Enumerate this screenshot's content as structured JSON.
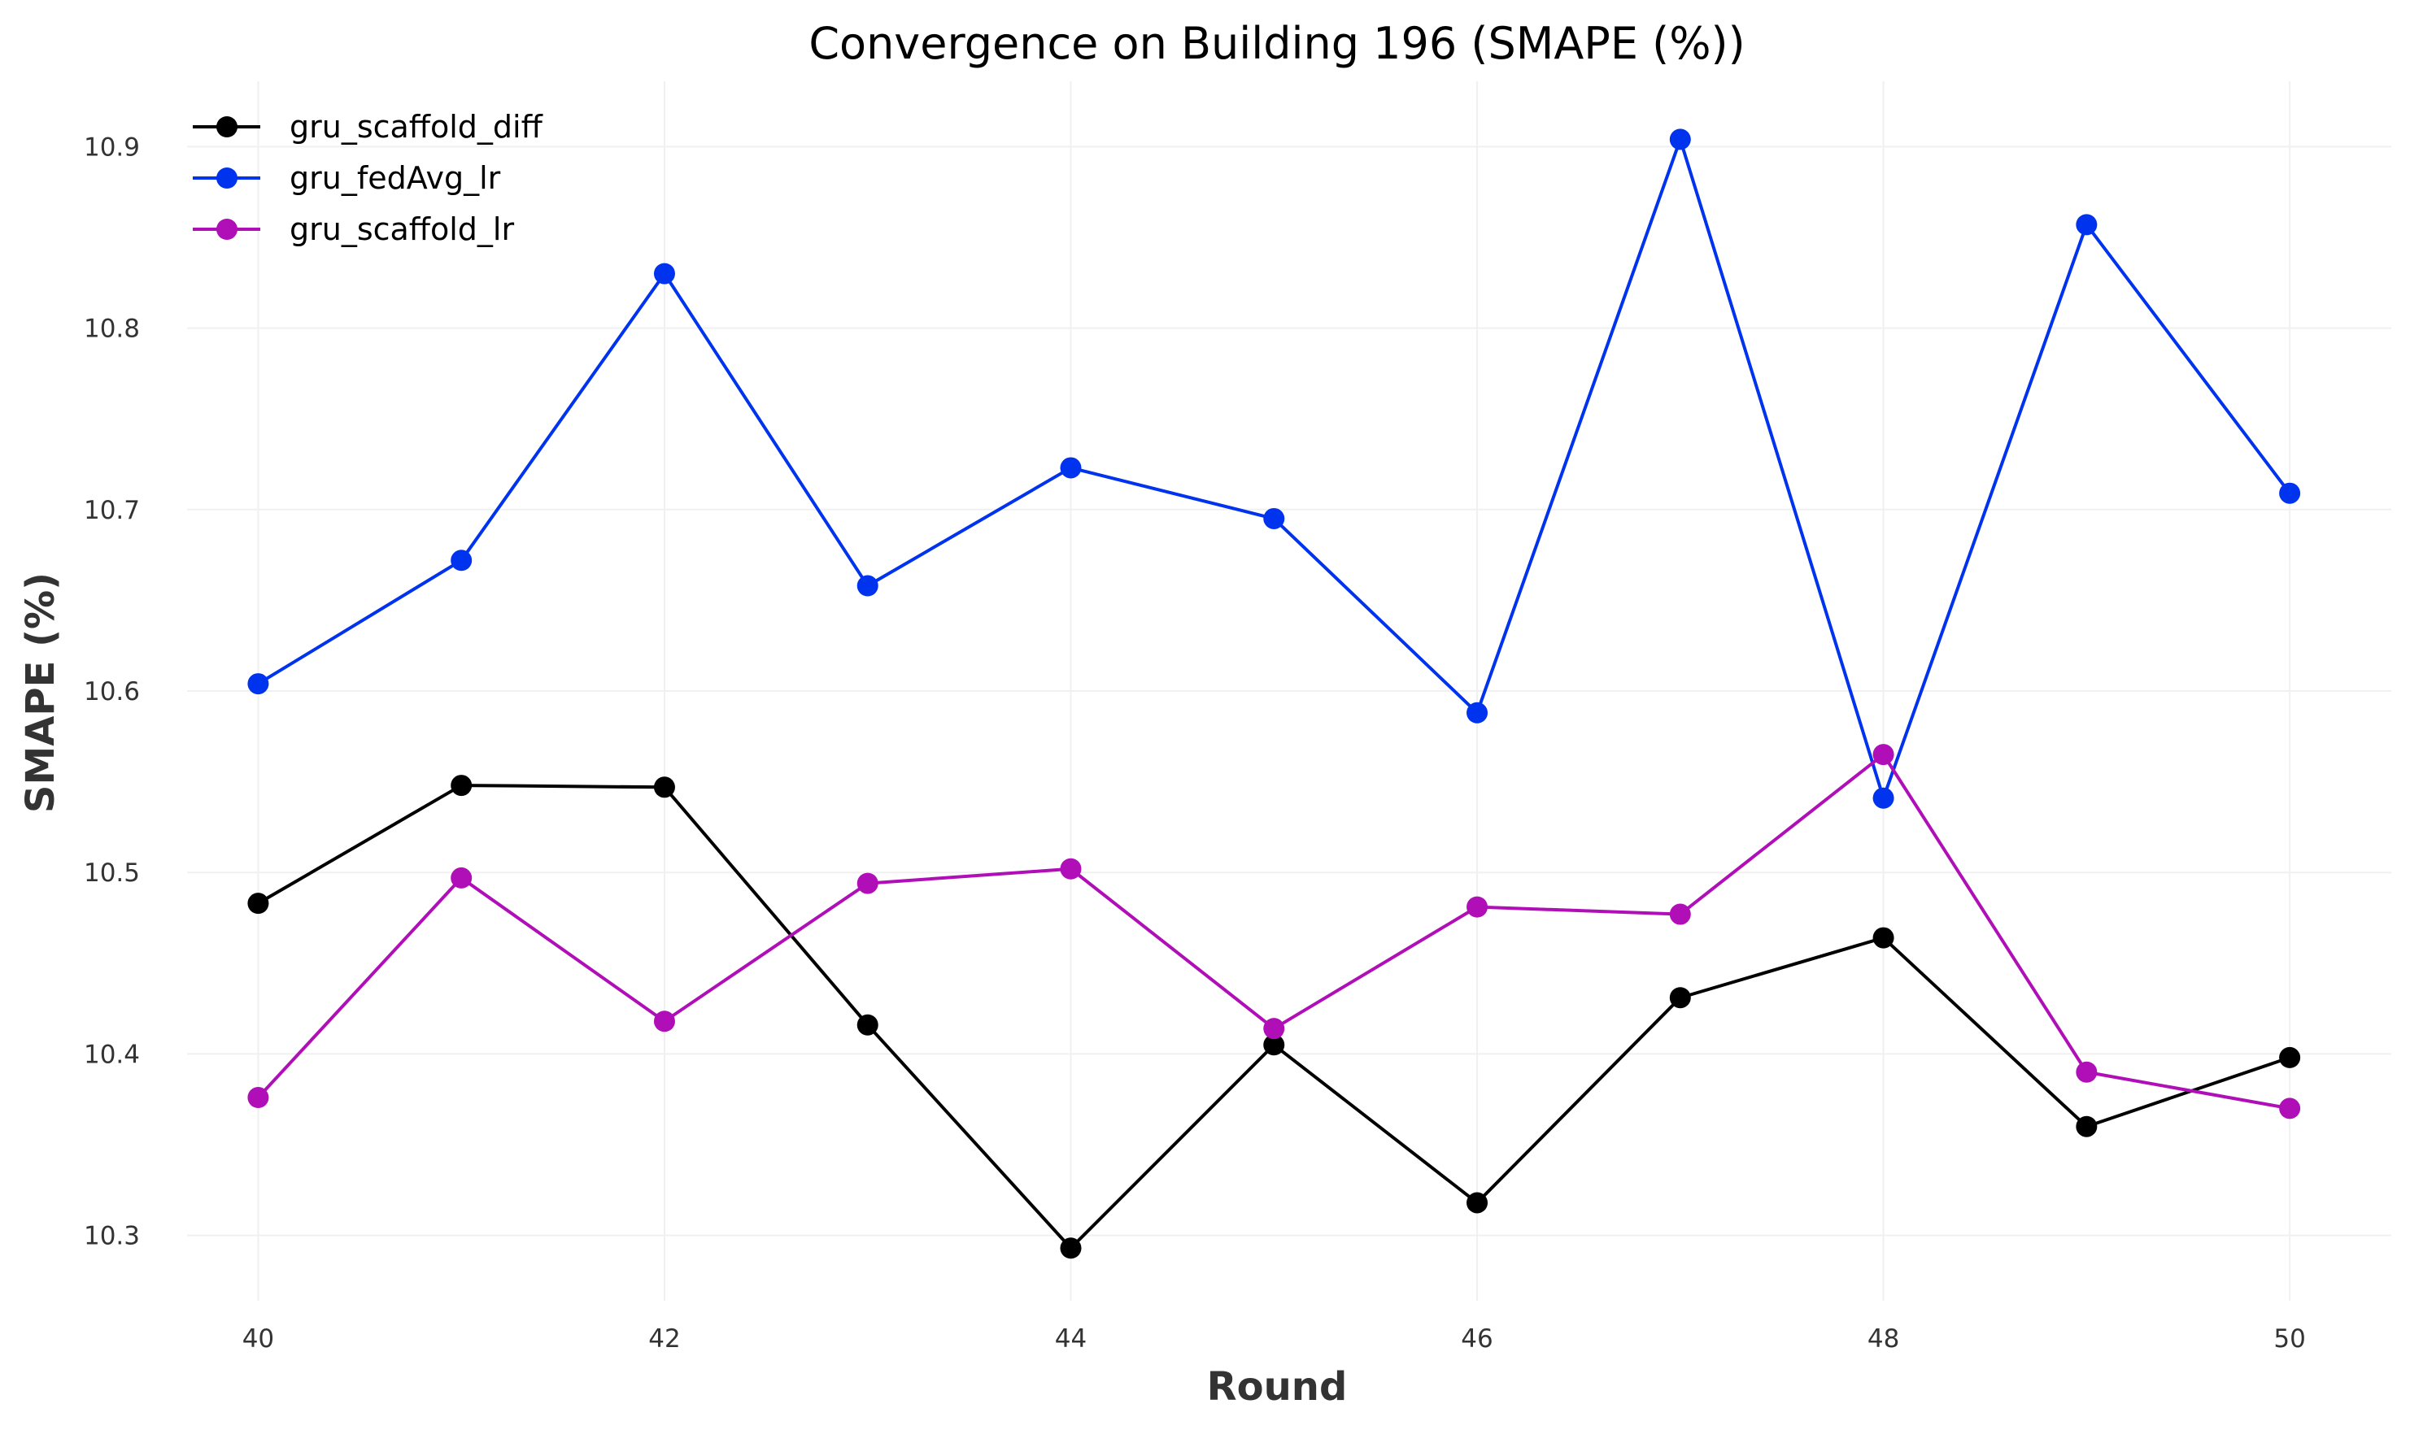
{
  "chart_data": {
    "type": "line",
    "title": "Convergence on Building 196 (SMAPE (%))",
    "xlabel": "Round",
    "ylabel": "SMAPE (%)",
    "x": [
      40,
      41,
      42,
      43,
      44,
      45,
      46,
      47,
      48,
      49,
      50
    ],
    "xticks": [
      40,
      42,
      44,
      46,
      48,
      50
    ],
    "xtick_labels": [
      "40",
      "42",
      "44",
      "46",
      "48",
      "50"
    ],
    "xlim": [
      39.65,
      50.5
    ],
    "yticks": [
      10.3,
      10.4,
      10.5,
      10.6,
      10.7,
      10.8,
      10.9
    ],
    "ytick_labels": [
      "10.3",
      "10.4",
      "10.5",
      "10.6",
      "10.7",
      "10.8",
      "10.9"
    ],
    "ylim": [
      10.264,
      10.936
    ],
    "grid": true,
    "legend_position": "top-left",
    "series": [
      {
        "name": "gru_scaffold_diff",
        "color": "#000000",
        "values": [
          10.483,
          10.548,
          10.547,
          10.416,
          10.293,
          10.405,
          10.318,
          10.431,
          10.464,
          10.36,
          10.398
        ]
      },
      {
        "name": "gru_fedAvg_lr",
        "color": "#0033ee",
        "values": [
          10.604,
          10.672,
          10.83,
          10.658,
          10.723,
          10.695,
          10.588,
          10.904,
          10.541,
          10.857,
          10.709
        ]
      },
      {
        "name": "gru_scaffold_lr",
        "color": "#b00fb8",
        "values": [
          10.376,
          10.497,
          10.418,
          10.494,
          10.502,
          10.414,
          10.481,
          10.477,
          10.565,
          10.39,
          10.37
        ]
      }
    ]
  }
}
